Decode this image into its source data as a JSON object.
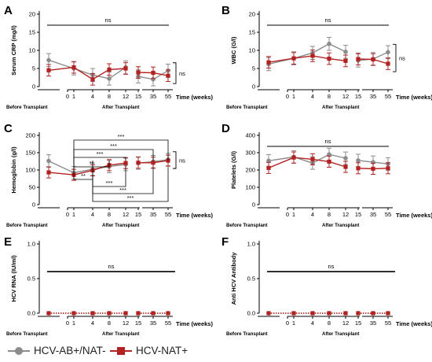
{
  "colors": {
    "series1": "#8c8c8c",
    "series2": "#b22222",
    "axis": "#000000"
  },
  "legend": {
    "series1": "HCV-AB+/NAT-",
    "series2": "HCV-NAT+"
  },
  "chart_data": [
    {
      "panel": "A",
      "type": "line",
      "ylabel": "Serum CRP (mg/l)",
      "xlabel": "Time (weeks)",
      "x_groups": [
        "Before Transplant",
        "After Transplant"
      ],
      "yticks": [
        0,
        5,
        10,
        15,
        20
      ],
      "ylim": [
        0,
        20
      ],
      "xticks": [
        "0",
        "1",
        "4",
        "8",
        "12",
        "15",
        "35",
        "55"
      ],
      "series": [
        {
          "name": "HCV-AB+/NAT-",
          "points": [
            [
              "pre",
              7.3
            ],
            [
              "1",
              5.0
            ],
            [
              "4",
              3.2
            ],
            [
              "8",
              2.2
            ],
            [
              "12",
              5.3
            ],
            [
              "15",
              2.8
            ],
            [
              "35",
              2.0
            ],
            [
              "55",
              4.4
            ]
          ]
        },
        {
          "name": "HCV-NAT+",
          "points": [
            [
              "pre",
              4.5
            ],
            [
              "1",
              5.3
            ],
            [
              "4",
              2.0
            ],
            [
              "8",
              4.7
            ],
            [
              "12",
              5.0
            ],
            [
              "15",
              3.9
            ],
            [
              "35",
              3.8
            ],
            [
              "55",
              3.0
            ]
          ]
        }
      ],
      "annotations": [
        {
          "type": "bracket-top",
          "text": "ns"
        },
        {
          "type": "bracket-right",
          "text": "ns"
        }
      ]
    },
    {
      "panel": "B",
      "type": "line",
      "ylabel": "WBC (G/l)",
      "xlabel": "Time (weeks)",
      "x_groups": [
        "Before Transplant",
        "After Transplant"
      ],
      "yticks": [
        0,
        5,
        10,
        15,
        20
      ],
      "ylim": [
        0,
        20
      ],
      "xticks": [
        "0",
        "1",
        "4",
        "8",
        "12",
        "15",
        "35",
        "55"
      ],
      "series": [
        {
          "name": "HCV-AB+/NAT-",
          "points": [
            [
              "pre",
              6.2
            ],
            [
              "1",
              7.8
            ],
            [
              "4",
              9.3
            ],
            [
              "8",
              11.8
            ],
            [
              "12",
              9.6
            ],
            [
              "15",
              7.2
            ],
            [
              "35",
              7.6
            ],
            [
              "55",
              9.5
            ]
          ]
        },
        {
          "name": "HCV-NAT+",
          "points": [
            [
              "pre",
              6.7
            ],
            [
              "1",
              7.8
            ],
            [
              "4",
              8.5
            ],
            [
              "8",
              7.7
            ],
            [
              "12",
              7.1
            ],
            [
              "15",
              7.6
            ],
            [
              "35",
              7.5
            ],
            [
              "55",
              6.3
            ]
          ]
        }
      ],
      "annotations": [
        {
          "type": "bracket-top",
          "text": "ns"
        },
        {
          "type": "bracket-right",
          "text": "ns"
        }
      ]
    },
    {
      "panel": "C",
      "type": "line",
      "ylabel": "Hemoglobin (g/l)",
      "xlabel": "Time (weeks)",
      "x_groups": [
        "Before Transplant",
        "After Transplant"
      ],
      "yticks": [
        0,
        50,
        100,
        150,
        200
      ],
      "ylim": [
        0,
        200
      ],
      "xticks": [
        "0",
        "1",
        "4",
        "8",
        "12",
        "15",
        "35",
        "55"
      ],
      "series": [
        {
          "name": "HCV-AB+/NAT-",
          "points": [
            [
              "pre",
              126
            ],
            [
              "1",
              92
            ],
            [
              "4",
              102
            ],
            [
              "8",
              110
            ],
            [
              "12",
              116
            ],
            [
              "15",
              120
            ],
            [
              "35",
              124
            ],
            [
              "55",
              130
            ]
          ]
        },
        {
          "name": "HCV-NAT+",
          "points": [
            [
              "pre",
              93
            ],
            [
              "1",
              86
            ],
            [
              "4",
              99
            ],
            [
              "8",
              114
            ],
            [
              "12",
              120
            ],
            [
              "15",
              121
            ],
            [
              "35",
              121
            ],
            [
              "55",
              127
            ]
          ]
        }
      ],
      "annotations": [
        {
          "type": "sig",
          "text": "***"
        },
        {
          "type": "sig",
          "text": "***"
        },
        {
          "type": "sig",
          "text": "***"
        },
        {
          "type": "sig",
          "text": "**"
        },
        {
          "type": "sig",
          "text": "**"
        },
        {
          "type": "sig",
          "text": "***"
        },
        {
          "type": "sig",
          "text": "***"
        },
        {
          "type": "sig",
          "text": "***"
        },
        {
          "type": "bracket-right",
          "text": "ns"
        }
      ]
    },
    {
      "panel": "D",
      "type": "line",
      "ylabel": "Platelets (G/l)",
      "xlabel": "Time (weeks)",
      "x_groups": [
        "Before Transplant",
        "After Transplant"
      ],
      "yticks": [
        0,
        100,
        200,
        300,
        400
      ],
      "ylim": [
        0,
        400
      ],
      "xticks": [
        "0",
        "1",
        "4",
        "8",
        "12",
        "15",
        "35",
        "55"
      ],
      "series": [
        {
          "name": "HCV-AB+/NAT-",
          "points": [
            [
              "pre",
              253
            ],
            [
              "1",
              275
            ],
            [
              "4",
              240
            ],
            [
              "8",
              290
            ],
            [
              "12",
              268
            ],
            [
              "15",
              255
            ],
            [
              "35",
              245
            ],
            [
              "55",
              235
            ]
          ]
        },
        {
          "name": "HCV-NAT+",
          "points": [
            [
              "pre",
              212
            ],
            [
              "1",
              272
            ],
            [
              "4",
              262
            ],
            [
              "8",
              248
            ],
            [
              "12",
              218
            ],
            [
              "15",
              210
            ],
            [
              "35",
              207
            ],
            [
              "55",
              210
            ]
          ]
        }
      ],
      "annotations": [
        {
          "type": "bracket-top",
          "text": "ns"
        }
      ]
    },
    {
      "panel": "E",
      "type": "line",
      "ylabel": "HCV RNA (IU/ml)",
      "xlabel": "Time (weeks)",
      "x_groups": [
        "Before Transplant",
        "After Transplant"
      ],
      "yticks": [
        0.0,
        0.5,
        1.0
      ],
      "ylim": [
        0,
        1.0
      ],
      "xticks": [
        "0",
        "1",
        "4",
        "8",
        "12",
        "15",
        "35",
        "55"
      ],
      "series": [
        {
          "name": "HCV-AB+/NAT-",
          "points": [
            [
              "pre",
              0
            ],
            [
              "1",
              0
            ],
            [
              "4",
              0
            ],
            [
              "8",
              0
            ],
            [
              "12",
              0
            ],
            [
              "15",
              0
            ],
            [
              "35",
              0
            ],
            [
              "55",
              0
            ]
          ]
        },
        {
          "name": "HCV-NAT+",
          "points": [
            [
              "pre",
              0
            ],
            [
              "1",
              0
            ],
            [
              "4",
              0
            ],
            [
              "8",
              0
            ],
            [
              "12",
              0
            ],
            [
              "15",
              0
            ],
            [
              "35",
              0
            ],
            [
              "55",
              0
            ]
          ]
        }
      ],
      "annotations": [
        {
          "type": "bracket-top",
          "text": "ns"
        }
      ]
    },
    {
      "panel": "F",
      "type": "line",
      "ylabel": "Anti HCV Antibody",
      "xlabel": "Time (weeks)",
      "x_groups": [
        "Before Transplant",
        "After Transplant"
      ],
      "yticks": [
        0.0,
        0.5,
        1.0
      ],
      "ylim": [
        0,
        1.0
      ],
      "xticks": [
        "0",
        "1",
        "4",
        "8",
        "12",
        "15",
        "35",
        "55"
      ],
      "series": [
        {
          "name": "HCV-AB+/NAT-",
          "points": [
            [
              "pre",
              0
            ],
            [
              "1",
              0
            ],
            [
              "4",
              0
            ],
            [
              "8",
              0
            ],
            [
              "12",
              0
            ],
            [
              "15",
              0
            ],
            [
              "35",
              0
            ],
            [
              "55",
              0
            ]
          ]
        },
        {
          "name": "HCV-NAT+",
          "points": [
            [
              "pre",
              0
            ],
            [
              "1",
              0
            ],
            [
              "4",
              0
            ],
            [
              "8",
              0
            ],
            [
              "12",
              0
            ],
            [
              "15",
              0
            ],
            [
              "35",
              0
            ],
            [
              "55",
              0
            ]
          ]
        }
      ],
      "annotations": [
        {
          "type": "bracket-top",
          "text": "ns"
        }
      ]
    }
  ]
}
